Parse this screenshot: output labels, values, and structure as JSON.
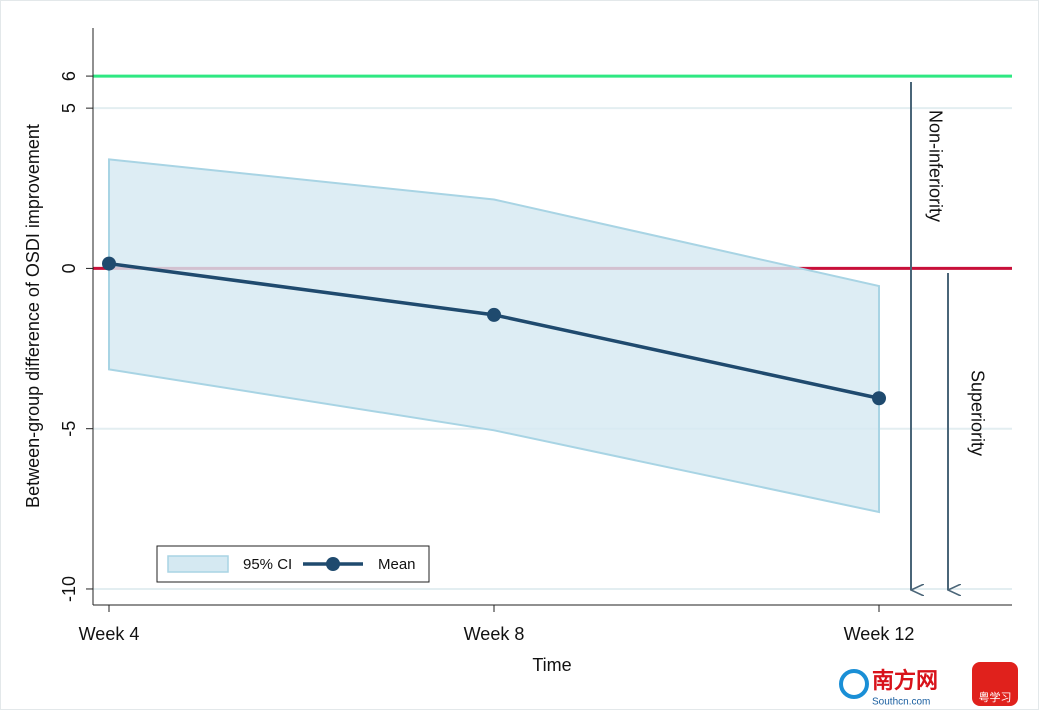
{
  "chart_data": {
    "type": "line",
    "categories": [
      "Week 4",
      "Week 8",
      "Week 12"
    ],
    "series": [
      {
        "name": "95% CI",
        "color": "#d5e9f2",
        "upper": [
          3.4,
          2.15,
          -0.55
        ],
        "lower": [
          -3.15,
          -5.05,
          -7.6
        ]
      },
      {
        "name": "Mean",
        "color": "#1f4a6e",
        "values": [
          0.15,
          -1.45,
          -4.05
        ]
      }
    ],
    "ylim": [
      -10.5,
      7.5
    ],
    "yticks": [
      -10,
      -5,
      0,
      5,
      6
    ],
    "grid": true,
    "reference_lines": [
      {
        "value": 6,
        "color": "#2ee882"
      },
      {
        "value": 0,
        "color": "#c8103a"
      }
    ],
    "xlabel": "Time",
    "ylabel": "Between-group difference of OSDI improvement",
    "annotations": [
      "Non-inferiority",
      "Superiority"
    ],
    "legend": "bottom-left"
  },
  "watermark": [
    "南方网",
    "Southcn.com",
    "粤学习"
  ]
}
